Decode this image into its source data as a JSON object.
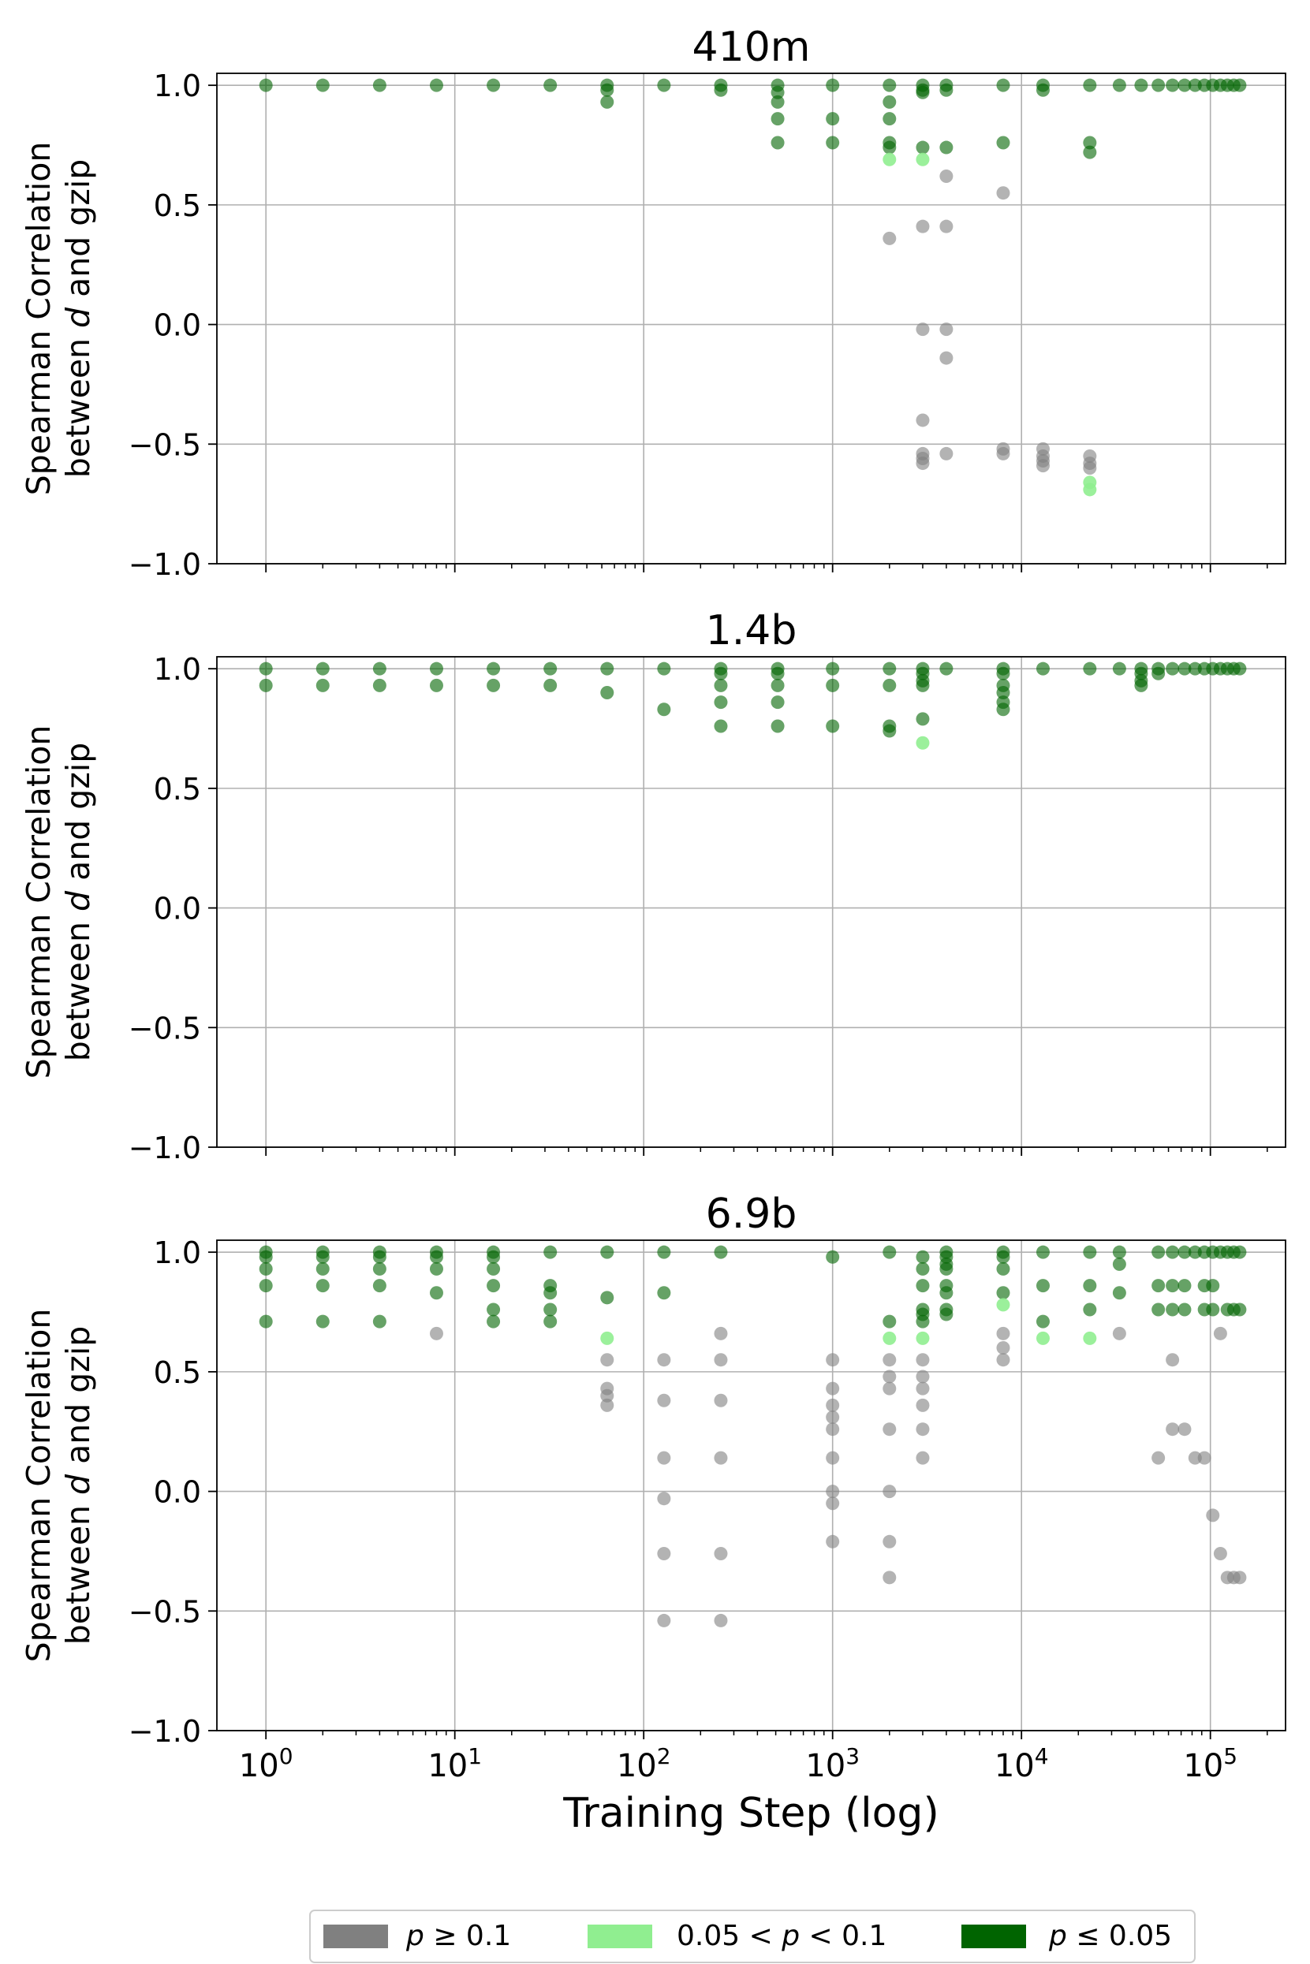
{
  "chart_data": [
    {
      "type": "scatter",
      "title": "410m",
      "xlabel": "",
      "ylabel": [
        "Spearman Correlation",
        "between d and gzip"
      ],
      "xscale": "log",
      "xlim": [
        0.55,
        250000
      ],
      "ylim": [
        -1.0,
        1.05
      ],
      "yticks": [
        "1.0",
        "0.5",
        "0.0",
        "−0.5",
        "−1.0"
      ],
      "show_xticklabels": false,
      "grid": true,
      "points": [
        {
          "x": 1,
          "y": [
            1.0
          ],
          "sig": "p<=0.05"
        },
        {
          "x": 2,
          "y": [
            1.0
          ],
          "sig": "p<=0.05"
        },
        {
          "x": 4,
          "y": [
            1.0
          ],
          "sig": "p<=0.05"
        },
        {
          "x": 8,
          "y": [
            1.0
          ],
          "sig": "p<=0.05"
        },
        {
          "x": 16,
          "y": [
            1.0
          ],
          "sig": "p<=0.05"
        },
        {
          "x": 32,
          "y": [
            1.0
          ],
          "sig": "p<=0.05"
        },
        {
          "x": 64,
          "y": [
            1.0,
            0.98,
            0.93
          ],
          "sig": "p<=0.05"
        },
        {
          "x": 128,
          "y": [
            1.0
          ],
          "sig": "p<=0.05"
        },
        {
          "x": 256,
          "y": [
            1.0,
            0.98
          ],
          "sig": "p<=0.05"
        },
        {
          "x": 512,
          "y": [
            1.0,
            0.97,
            0.93,
            0.86,
            0.76
          ],
          "sig": "p<=0.05"
        },
        {
          "x": 1000,
          "y": [
            1.0,
            0.86,
            0.76
          ],
          "sig": "p<=0.05"
        },
        {
          "x": 2000,
          "y": [
            1.0,
            0.93,
            0.86,
            0.76,
            0.74
          ],
          "sig": "p<=0.05"
        },
        {
          "x": 2000,
          "y": [
            0.69
          ],
          "sig": "0.05<p<0.1"
        },
        {
          "x": 2000,
          "y": [
            0.36
          ],
          "sig": "p>=0.1"
        },
        {
          "x": 3000,
          "y": [
            1.0,
            0.98,
            0.97,
            0.74
          ],
          "sig": "p<=0.05"
        },
        {
          "x": 3000,
          "y": [
            0.69
          ],
          "sig": "0.05<p<0.1"
        },
        {
          "x": 3000,
          "y": [
            0.41,
            -0.02,
            -0.4,
            -0.54,
            -0.56,
            -0.58
          ],
          "sig": "p>=0.1"
        },
        {
          "x": 4000,
          "y": [
            1.0,
            0.98,
            0.74
          ],
          "sig": "p<=0.05"
        },
        {
          "x": 4000,
          "y": [
            0.62,
            0.41,
            -0.02,
            -0.14,
            -0.54
          ],
          "sig": "p>=0.1"
        },
        {
          "x": 8000,
          "y": [
            1.0,
            0.76
          ],
          "sig": "p<=0.05"
        },
        {
          "x": 8000,
          "y": [
            0.55,
            -0.52,
            -0.54
          ],
          "sig": "p>=0.1"
        },
        {
          "x": 13000,
          "y": [
            1.0,
            0.98
          ],
          "sig": "p<=0.05"
        },
        {
          "x": 13000,
          "y": [
            -0.52,
            -0.55,
            -0.57,
            -0.59
          ],
          "sig": "p>=0.1"
        },
        {
          "x": 23000,
          "y": [
            1.0,
            0.76,
            0.72
          ],
          "sig": "p<=0.05"
        },
        {
          "x": 23000,
          "y": [
            -0.55,
            -0.58,
            -0.6
          ],
          "sig": "p>=0.1"
        },
        {
          "x": 23000,
          "y": [
            -0.66,
            -0.69
          ],
          "sig": "0.05<p<0.1"
        },
        {
          "x": 33000,
          "y": [
            1.0
          ],
          "sig": "p<=0.05"
        },
        {
          "x": 43000,
          "y": [
            1.0
          ],
          "sig": "p<=0.05"
        },
        {
          "x": 53000,
          "y": [
            1.0
          ],
          "sig": "p<=0.05"
        },
        {
          "x": 63000,
          "y": [
            1.0
          ],
          "sig": "p<=0.05"
        },
        {
          "x": 73000,
          "y": [
            1.0
          ],
          "sig": "p<=0.05"
        },
        {
          "x": 83000,
          "y": [
            1.0
          ],
          "sig": "p<=0.05"
        },
        {
          "x": 93000,
          "y": [
            1.0
          ],
          "sig": "p<=0.05"
        },
        {
          "x": 103000,
          "y": [
            1.0
          ],
          "sig": "p<=0.05"
        },
        {
          "x": 113000,
          "y": [
            1.0
          ],
          "sig": "p<=0.05"
        },
        {
          "x": 123000,
          "y": [
            1.0
          ],
          "sig": "p<=0.05"
        },
        {
          "x": 133000,
          "y": [
            1.0
          ],
          "sig": "p<=0.05"
        },
        {
          "x": 143000,
          "y": [
            1.0
          ],
          "sig": "p<=0.05"
        }
      ]
    },
    {
      "type": "scatter",
      "title": "1.4b",
      "xlabel": "",
      "ylabel": [
        "Spearman Correlation",
        "between d and gzip"
      ],
      "xscale": "log",
      "xlim": [
        0.55,
        250000
      ],
      "ylim": [
        -1.0,
        1.05
      ],
      "yticks": [
        "1.0",
        "0.5",
        "0.0",
        "−0.5",
        "−1.0"
      ],
      "show_xticklabels": false,
      "grid": true,
      "points": [
        {
          "x": 1,
          "y": [
            1.0,
            0.93
          ],
          "sig": "p<=0.05"
        },
        {
          "x": 2,
          "y": [
            1.0,
            0.93
          ],
          "sig": "p<=0.05"
        },
        {
          "x": 4,
          "y": [
            1.0,
            0.93
          ],
          "sig": "p<=0.05"
        },
        {
          "x": 8,
          "y": [
            1.0,
            0.93
          ],
          "sig": "p<=0.05"
        },
        {
          "x": 16,
          "y": [
            1.0,
            0.93
          ],
          "sig": "p<=0.05"
        },
        {
          "x": 32,
          "y": [
            1.0,
            0.93
          ],
          "sig": "p<=0.05"
        },
        {
          "x": 64,
          "y": [
            1.0,
            0.9
          ],
          "sig": "p<=0.05"
        },
        {
          "x": 128,
          "y": [
            1.0,
            0.83
          ],
          "sig": "p<=0.05"
        },
        {
          "x": 256,
          "y": [
            1.0,
            0.98,
            0.93,
            0.86,
            0.76
          ],
          "sig": "p<=0.05"
        },
        {
          "x": 512,
          "y": [
            1.0,
            0.98,
            0.93,
            0.86,
            0.76
          ],
          "sig": "p<=0.05"
        },
        {
          "x": 1000,
          "y": [
            1.0,
            0.93,
            0.76
          ],
          "sig": "p<=0.05"
        },
        {
          "x": 2000,
          "y": [
            1.0,
            0.93,
            0.76,
            0.74
          ],
          "sig": "p<=0.05"
        },
        {
          "x": 3000,
          "y": [
            1.0,
            0.98,
            0.95,
            0.93,
            0.79
          ],
          "sig": "p<=0.05"
        },
        {
          "x": 3000,
          "y": [
            0.69
          ],
          "sig": "0.05<p<0.1"
        },
        {
          "x": 4000,
          "y": [
            1.0
          ],
          "sig": "p<=0.05"
        },
        {
          "x": 8000,
          "y": [
            1.0,
            0.98,
            0.93,
            0.9,
            0.86,
            0.83
          ],
          "sig": "p<=0.05"
        },
        {
          "x": 13000,
          "y": [
            1.0
          ],
          "sig": "p<=0.05"
        },
        {
          "x": 23000,
          "y": [
            1.0
          ],
          "sig": "p<=0.05"
        },
        {
          "x": 33000,
          "y": [
            1.0
          ],
          "sig": "p<=0.05"
        },
        {
          "x": 43000,
          "y": [
            1.0,
            0.98,
            0.95,
            0.93
          ],
          "sig": "p<=0.05"
        },
        {
          "x": 53000,
          "y": [
            1.0,
            0.98
          ],
          "sig": "p<=0.05"
        },
        {
          "x": 63000,
          "y": [
            1.0
          ],
          "sig": "p<=0.05"
        },
        {
          "x": 73000,
          "y": [
            1.0
          ],
          "sig": "p<=0.05"
        },
        {
          "x": 83000,
          "y": [
            1.0
          ],
          "sig": "p<=0.05"
        },
        {
          "x": 93000,
          "y": [
            1.0
          ],
          "sig": "p<=0.05"
        },
        {
          "x": 103000,
          "y": [
            1.0
          ],
          "sig": "p<=0.05"
        },
        {
          "x": 113000,
          "y": [
            1.0
          ],
          "sig": "p<=0.05"
        },
        {
          "x": 123000,
          "y": [
            1.0
          ],
          "sig": "p<=0.05"
        },
        {
          "x": 133000,
          "y": [
            1.0
          ],
          "sig": "p<=0.05"
        },
        {
          "x": 143000,
          "y": [
            1.0
          ],
          "sig": "p<=0.05"
        }
      ]
    },
    {
      "type": "scatter",
      "title": "6.9b",
      "xlabel": "Training Step (log)",
      "ylabel": [
        "Spearman Correlation",
        "between d and gzip"
      ],
      "xscale": "log",
      "xlim": [
        0.55,
        250000
      ],
      "ylim": [
        -1.0,
        1.05
      ],
      "yticks": [
        "1.0",
        "0.5",
        "0.0",
        "−0.5",
        "−1.0"
      ],
      "xticks": [
        {
          "value": 1,
          "base": "10",
          "exp": "0"
        },
        {
          "value": 10,
          "base": "10",
          "exp": "1"
        },
        {
          "value": 100,
          "base": "10",
          "exp": "2"
        },
        {
          "value": 1000,
          "base": "10",
          "exp": "3"
        },
        {
          "value": 10000,
          "base": "10",
          "exp": "4"
        },
        {
          "value": 100000,
          "base": "10",
          "exp": "5"
        }
      ],
      "show_xticklabels": true,
      "grid": true,
      "points": [
        {
          "x": 1,
          "y": [
            1.0,
            0.98,
            0.93,
            0.86,
            0.71
          ],
          "sig": "p<=0.05"
        },
        {
          "x": 2,
          "y": [
            1.0,
            0.98,
            0.93,
            0.86,
            0.71
          ],
          "sig": "p<=0.05"
        },
        {
          "x": 4,
          "y": [
            1.0,
            0.98,
            0.93,
            0.86,
            0.71
          ],
          "sig": "p<=0.05"
        },
        {
          "x": 8,
          "y": [
            1.0,
            0.98,
            0.93,
            0.83
          ],
          "sig": "p<=0.05"
        },
        {
          "x": 8,
          "y": [
            0.66
          ],
          "sig": "p>=0.1"
        },
        {
          "x": 16,
          "y": [
            1.0,
            0.98,
            0.93,
            0.86,
            0.76,
            0.71
          ],
          "sig": "p<=0.05"
        },
        {
          "x": 32,
          "y": [
            1.0,
            0.86,
            0.83,
            0.76,
            0.71
          ],
          "sig": "p<=0.05"
        },
        {
          "x": 64,
          "y": [
            1.0,
            0.81
          ],
          "sig": "p<=0.05"
        },
        {
          "x": 64,
          "y": [
            0.64
          ],
          "sig": "0.05<p<0.1"
        },
        {
          "x": 64,
          "y": [
            0.55,
            0.43,
            0.4,
            0.36
          ],
          "sig": "p>=0.1"
        },
        {
          "x": 128,
          "y": [
            1.0,
            0.83
          ],
          "sig": "p<=0.05"
        },
        {
          "x": 128,
          "y": [
            0.55,
            0.38,
            0.14,
            -0.03,
            -0.26,
            -0.54
          ],
          "sig": "p>=0.1"
        },
        {
          "x": 256,
          "y": [
            1.0
          ],
          "sig": "p<=0.05"
        },
        {
          "x": 256,
          "y": [
            0.66,
            0.55,
            0.38,
            0.14,
            -0.26,
            -0.54
          ],
          "sig": "p>=0.1"
        },
        {
          "x": 1000,
          "y": [
            0.98
          ],
          "sig": "p<=0.05"
        },
        {
          "x": 1000,
          "y": [
            0.55,
            0.43,
            0.36,
            0.31,
            0.26,
            0.14,
            0.0,
            -0.05,
            -0.21
          ],
          "sig": "p>=0.1"
        },
        {
          "x": 2000,
          "y": [
            1.0,
            0.71
          ],
          "sig": "p<=0.05"
        },
        {
          "x": 2000,
          "y": [
            0.64
          ],
          "sig": "0.05<p<0.1"
        },
        {
          "x": 2000,
          "y": [
            0.55,
            0.48,
            0.43,
            0.26,
            0.0,
            -0.21,
            -0.36
          ],
          "sig": "p>=0.1"
        },
        {
          "x": 3000,
          "y": [
            0.98,
            0.93,
            0.86,
            0.76,
            0.74,
            0.71
          ],
          "sig": "p<=0.05"
        },
        {
          "x": 3000,
          "y": [
            0.64
          ],
          "sig": "0.05<p<0.1"
        },
        {
          "x": 3000,
          "y": [
            0.55,
            0.48,
            0.43,
            0.36,
            0.26,
            0.14
          ],
          "sig": "p>=0.1"
        },
        {
          "x": 4000,
          "y": [
            1.0,
            0.98,
            0.95,
            0.93,
            0.86,
            0.83,
            0.76,
            0.74
          ],
          "sig": "p<=0.05"
        },
        {
          "x": 8000,
          "y": [
            1.0,
            0.98,
            0.93,
            0.83
          ],
          "sig": "p<=0.05"
        },
        {
          "x": 8000,
          "y": [
            0.78
          ],
          "sig": "0.05<p<0.1"
        },
        {
          "x": 8000,
          "y": [
            0.66,
            0.6,
            0.55
          ],
          "sig": "p>=0.1"
        },
        {
          "x": 13000,
          "y": [
            1.0,
            0.86,
            0.71
          ],
          "sig": "p<=0.05"
        },
        {
          "x": 13000,
          "y": [
            0.64
          ],
          "sig": "0.05<p<0.1"
        },
        {
          "x": 23000,
          "y": [
            1.0,
            0.86,
            0.76
          ],
          "sig": "p<=0.05"
        },
        {
          "x": 23000,
          "y": [
            0.64
          ],
          "sig": "0.05<p<0.1"
        },
        {
          "x": 33000,
          "y": [
            1.0,
            0.95,
            0.83
          ],
          "sig": "p<=0.05"
        },
        {
          "x": 33000,
          "y": [
            0.66
          ],
          "sig": "p>=0.1"
        },
        {
          "x": 53000,
          "y": [
            1.0,
            0.86,
            0.76
          ],
          "sig": "p<=0.05"
        },
        {
          "x": 53000,
          "y": [
            0.14
          ],
          "sig": "p>=0.1"
        },
        {
          "x": 63000,
          "y": [
            1.0,
            0.86,
            0.76
          ],
          "sig": "p<=0.05"
        },
        {
          "x": 63000,
          "y": [
            0.55,
            0.26
          ],
          "sig": "p>=0.1"
        },
        {
          "x": 73000,
          "y": [
            1.0,
            0.86,
            0.76
          ],
          "sig": "p<=0.05"
        },
        {
          "x": 73000,
          "y": [
            0.26
          ],
          "sig": "p>=0.1"
        },
        {
          "x": 83000,
          "y": [
            1.0
          ],
          "sig": "p<=0.05"
        },
        {
          "x": 83000,
          "y": [
            0.14
          ],
          "sig": "p>=0.1"
        },
        {
          "x": 93000,
          "y": [
            1.0,
            0.86,
            0.76
          ],
          "sig": "p<=0.05"
        },
        {
          "x": 93000,
          "y": [
            0.14
          ],
          "sig": "p>=0.1"
        },
        {
          "x": 103000,
          "y": [
            1.0,
            0.86,
            0.76
          ],
          "sig": "p<=0.05"
        },
        {
          "x": 103000,
          "y": [
            -0.1
          ],
          "sig": "p>=0.1"
        },
        {
          "x": 113000,
          "y": [
            1.0
          ],
          "sig": "p<=0.05"
        },
        {
          "x": 113000,
          "y": [
            0.66,
            -0.26
          ],
          "sig": "p>=0.1"
        },
        {
          "x": 123000,
          "y": [
            1.0,
            0.76
          ],
          "sig": "p<=0.05"
        },
        {
          "x": 123000,
          "y": [
            -0.36
          ],
          "sig": "p>=0.1"
        },
        {
          "x": 133000,
          "y": [
            1.0,
            0.76
          ],
          "sig": "p<=0.05"
        },
        {
          "x": 133000,
          "y": [
            -0.36
          ],
          "sig": "p>=0.1"
        },
        {
          "x": 143000,
          "y": [
            1.0,
            0.76
          ],
          "sig": "p<=0.05"
        },
        {
          "x": 143000,
          "y": [
            -0.36
          ],
          "sig": "p>=0.1"
        }
      ]
    }
  ],
  "legend": {
    "placement": "bottom-center",
    "items": [
      {
        "key": "p>=0.1",
        "label_parts": [
          "p",
          " ≥ 0.1"
        ],
        "color": "#808080"
      },
      {
        "key": "0.05<p<0.1",
        "label_parts": [
          "0.05 < ",
          "p",
          " < 0.1"
        ],
        "color": "#90ee90"
      },
      {
        "key": "p<=0.05",
        "label_parts": [
          "p",
          " ≤ 0.05"
        ],
        "color": "#006400"
      }
    ]
  },
  "marker_alpha": {
    "p>=0.1": 0.6,
    "0.05<p<0.1": 0.9,
    "p<=0.05": 0.6
  }
}
